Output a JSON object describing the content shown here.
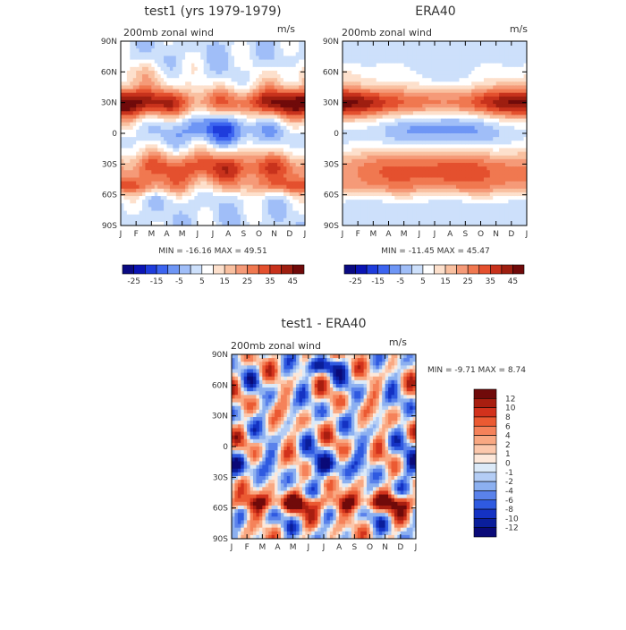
{
  "chart_data": [
    {
      "type": "heatmap",
      "title": "test1 (yrs 1979-1979)",
      "subtitle": "200mb zonal wind",
      "units": "m/s",
      "x_ticks": [
        "J",
        "F",
        "M",
        "A",
        "M",
        "J",
        "J",
        "A",
        "S",
        "O",
        "N",
        "D",
        "J"
      ],
      "y_ticks": [
        "90N",
        "60N",
        "30N",
        "0",
        "30S",
        "60S",
        "90S"
      ],
      "stats": "MIN = -16.16 MAX =  49.51",
      "colorbar_ticks": [
        "-25",
        "-15",
        "-5",
        "5",
        "15",
        "25",
        "35",
        "45"
      ],
      "colorbar_colors": [
        "#0a0a82",
        "#0a14b4",
        "#1e3cdc",
        "#3c64f0",
        "#6e96f5",
        "#a0bef8",
        "#cde0fb",
        "#ffffff",
        "#fde0cc",
        "#f9c0a0",
        "#f59a78",
        "#f07850",
        "#e4502e",
        "#c8321c",
        "#9e1e10",
        "#700a0a"
      ],
      "grid": false
    },
    {
      "type": "heatmap",
      "title": "ERA40",
      "subtitle": "200mb zonal wind",
      "units": "m/s",
      "x_ticks": [
        "J",
        "F",
        "M",
        "A",
        "M",
        "J",
        "J",
        "A",
        "S",
        "O",
        "N",
        "D",
        "J"
      ],
      "y_ticks": [
        "90N",
        "60N",
        "30N",
        "0",
        "30S",
        "60S",
        "90S"
      ],
      "stats": "MIN = -11.45 MAX =  45.47",
      "colorbar_ticks": [
        "-25",
        "-15",
        "-5",
        "5",
        "15",
        "25",
        "35",
        "45"
      ],
      "colorbar_colors": [
        "#0a0a82",
        "#0a14b4",
        "#1e3cdc",
        "#3c64f0",
        "#6e96f5",
        "#a0bef8",
        "#cde0fb",
        "#ffffff",
        "#fde0cc",
        "#f9c0a0",
        "#f59a78",
        "#f07850",
        "#e4502e",
        "#c8321c",
        "#9e1e10",
        "#700a0a"
      ],
      "grid": false
    },
    {
      "type": "heatmap",
      "title": "test1 - ERA40",
      "subtitle": "200mb zonal wind",
      "units": "m/s",
      "x_ticks": [
        "J",
        "F",
        "M",
        "A",
        "M",
        "J",
        "J",
        "A",
        "S",
        "O",
        "N",
        "D",
        "J"
      ],
      "y_ticks": [
        "90N",
        "60N",
        "30N",
        "0",
        "30S",
        "60S",
        "90S"
      ],
      "stats": "MIN =  -9.71 MAX =   8.74",
      "colorbar_ticks": [
        "12",
        "10",
        "8",
        "6",
        "4",
        "2",
        "1",
        "0",
        "-1",
        "-2",
        "-4",
        "-6",
        "-8",
        "-10",
        "-12"
      ],
      "colorbar_colors": [
        "#700a0a",
        "#a81e10",
        "#d2321c",
        "#eb5a32",
        "#f5825a",
        "#f9a882",
        "#fcc8ac",
        "#fde8da",
        "#dceaf8",
        "#b4cdf5",
        "#8cb0f0",
        "#5a82eb",
        "#2f5ae0",
        "#1432c3",
        "#0a1e9b",
        "#0a0a78"
      ],
      "legend_placement": "right",
      "grid": false
    }
  ]
}
